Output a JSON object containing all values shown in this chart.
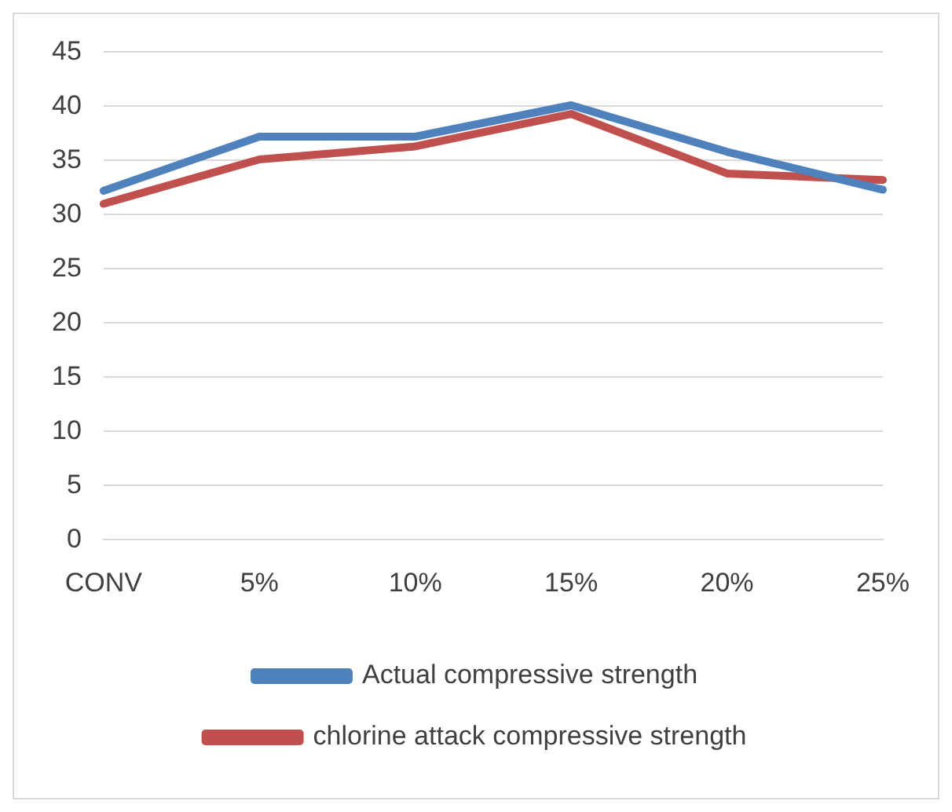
{
  "chart_data": {
    "type": "line",
    "categories": [
      "CONV",
      "5%",
      "10%",
      "15%",
      "20%",
      "25%"
    ],
    "series": [
      {
        "name": "Actual compressive strength",
        "color": "#4f81bd",
        "values": [
          32.2,
          37.2,
          37.2,
          40.1,
          35.8,
          32.3
        ]
      },
      {
        "name": "chlorine attack compressive strength",
        "color": "#c0504d",
        "values": [
          31.0,
          35.1,
          36.3,
          39.3,
          33.8,
          33.2
        ]
      }
    ],
    "ylim": [
      0,
      45
    ],
    "yticks": [
      0,
      5,
      10,
      15,
      20,
      25,
      30,
      35,
      40,
      45
    ],
    "grid": "y",
    "legend": "bottom",
    "marker": "none",
    "line_style": "solid"
  }
}
